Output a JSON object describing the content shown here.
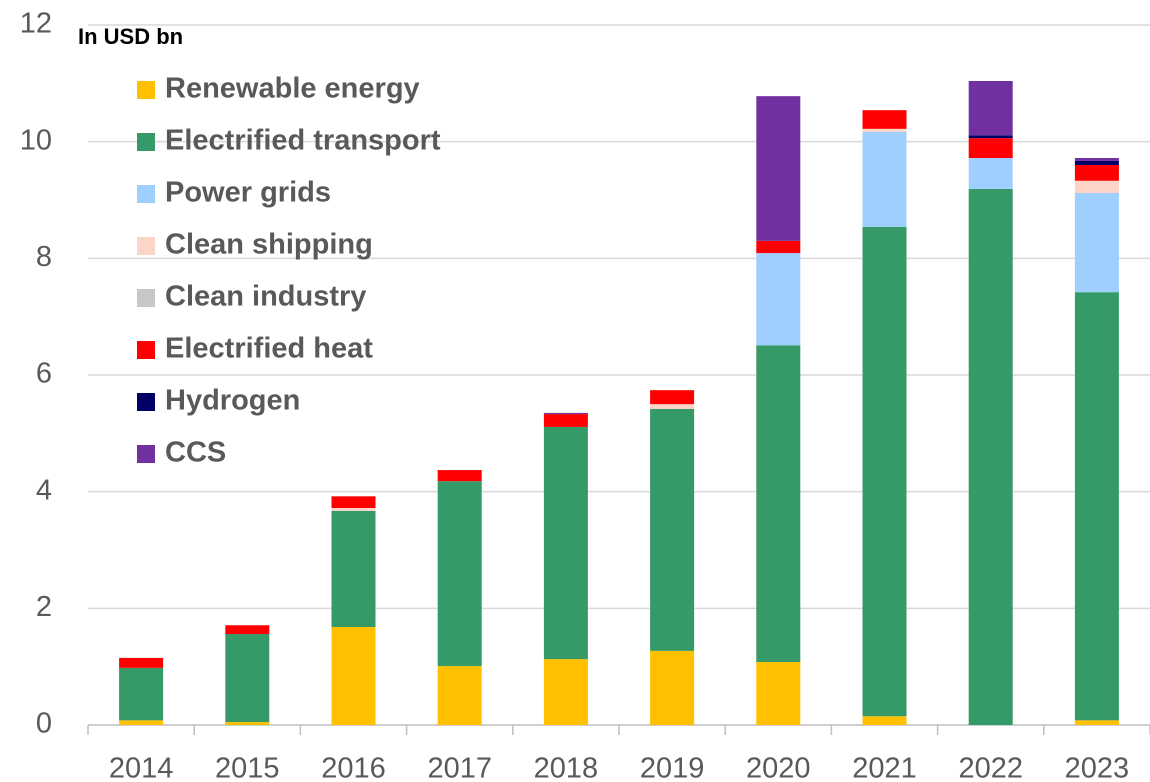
{
  "chart_data": {
    "type": "stacked_bar",
    "ylabel": "In USD bn",
    "categories": [
      "2014",
      "2015",
      "2016",
      "2017",
      "2018",
      "2019",
      "2020",
      "2021",
      "2022",
      "2023"
    ],
    "series": [
      {
        "name": "Renewable energy",
        "color": "#ffc000",
        "values": [
          0.08,
          0.05,
          1.68,
          1.01,
          1.13,
          1.27,
          1.08,
          0.15,
          0,
          0.08
        ]
      },
      {
        "name": "Electrified transport",
        "color": "#359a68",
        "values": [
          0.9,
          1.51,
          1.99,
          3.17,
          3.98,
          4.15,
          5.43,
          8.39,
          9.19,
          7.34
        ]
      },
      {
        "name": "Power grids",
        "color": "#9fcfff",
        "values": [
          0,
          0,
          0,
          0,
          0,
          0,
          1.58,
          1.63,
          0.53,
          1.7
        ]
      },
      {
        "name": "Clean shipping",
        "color": "#fcd5c8",
        "values": [
          0,
          0,
          0.05,
          0,
          0,
          0.08,
          0,
          0.05,
          0,
          0.21
        ]
      },
      {
        "name": "Clean industry",
        "color": "#c8c8c8",
        "values": [
          0,
          0,
          0,
          0,
          0,
          0,
          0,
          0,
          0,
          0
        ]
      },
      {
        "name": "Electrified heat",
        "color": "#ff0000",
        "values": [
          0.17,
          0.15,
          0.2,
          0.19,
          0.22,
          0.24,
          0.21,
          0.32,
          0.34,
          0.27
        ]
      },
      {
        "name": "Hydrogen",
        "color": "#000066",
        "values": [
          0,
          0,
          0,
          0,
          0,
          0,
          0,
          0,
          0.05,
          0.07
        ]
      },
      {
        "name": "CCS",
        "color": "#7030a0",
        "values": [
          0,
          0,
          0,
          0,
          0.02,
          0,
          2.48,
          0,
          0.93,
          0.05
        ]
      }
    ],
    "ylim": [
      0,
      12
    ],
    "yticks": [
      0,
      2,
      4,
      6,
      8,
      10,
      12
    ],
    "grid": true,
    "legend": "upper left"
  }
}
